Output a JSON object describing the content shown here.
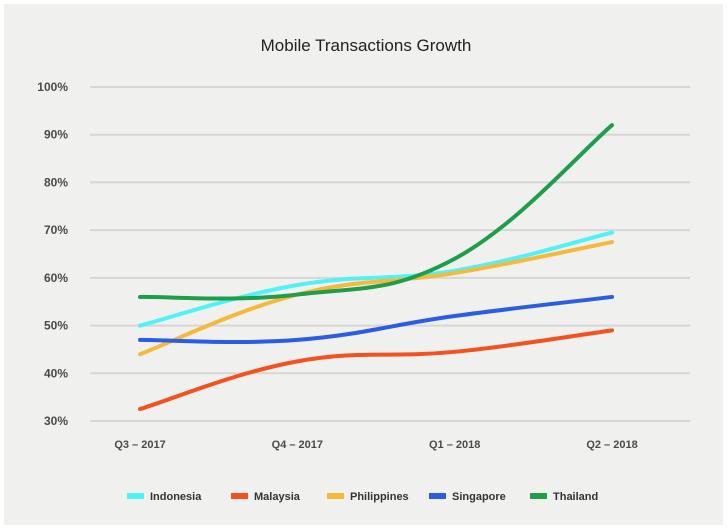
{
  "chart_data": {
    "type": "line",
    "title": "Mobile Transactions Growth",
    "categories": [
      "Q3 – 2017",
      "Q4 – 2017",
      "Q1 – 2018",
      "Q2 – 2018"
    ],
    "ylim": [
      30,
      100
    ],
    "yticks": [
      "30%",
      "40%",
      "50%",
      "60%",
      "70%",
      "80%",
      "90%",
      "100%"
    ],
    "grid": true,
    "legend_position": "bottom",
    "series": [
      {
        "name": "Indonesia",
        "color": "#4ff2f7",
        "values": [
          50,
          58.5,
          61.5,
          69.5
        ]
      },
      {
        "name": "Malaysia",
        "color": "#f4511e",
        "values": [
          32.5,
          42.5,
          44.5,
          49
        ]
      },
      {
        "name": "Philippines",
        "color": "#f6b93b",
        "values": [
          44,
          56.5,
          61,
          67.5
        ]
      },
      {
        "name": "Singapore",
        "color": "#2b5ce6",
        "values": [
          47,
          47,
          52,
          56
        ]
      },
      {
        "name": "Thailand",
        "color": "#1e9e4a",
        "values": [
          56,
          56.5,
          64,
          92
        ]
      }
    ]
  }
}
